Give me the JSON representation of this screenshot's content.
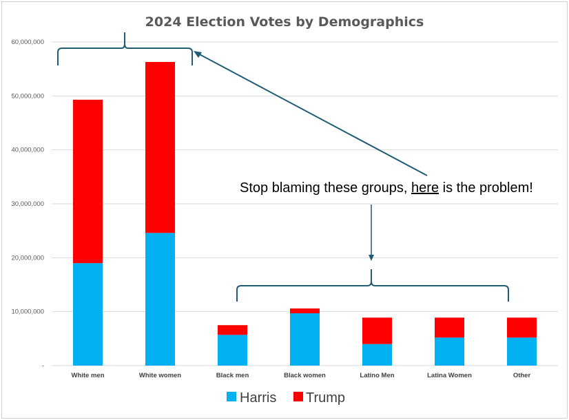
{
  "chart_data": {
    "type": "bar",
    "stacked": true,
    "title": "2024 Election Votes by Demographics",
    "xlabel": "",
    "ylabel": "",
    "ylim": [
      0,
      60000000
    ],
    "yticks": [
      0,
      10000000,
      20000000,
      30000000,
      40000000,
      50000000,
      60000000
    ],
    "ytick_labels": [
      "-",
      "10,000,000",
      "20,000,000",
      "30,000,000",
      "40,000,000",
      "50,000,000",
      "60,000,000"
    ],
    "grid": true,
    "legend_position": "bottom",
    "categories": [
      "White men",
      "White women",
      "Black men",
      "Black women",
      "Latino Men",
      "Latina Women",
      "Other"
    ],
    "series": [
      {
        "name": "Harris",
        "color": "#00B0F0",
        "values": [
          19000000,
          24600000,
          5700000,
          9700000,
          4000000,
          5200000,
          5200000
        ]
      },
      {
        "name": "Trump",
        "color": "#FF0000",
        "values": [
          30300000,
          31700000,
          1800000,
          900000,
          4900000,
          3700000,
          3700000
        ]
      }
    ],
    "annotation": {
      "text_before": "Stop blaming these groups, ",
      "text_underlined": "here",
      "text_after": " is the problem!",
      "color": "#1F5C73"
    }
  }
}
